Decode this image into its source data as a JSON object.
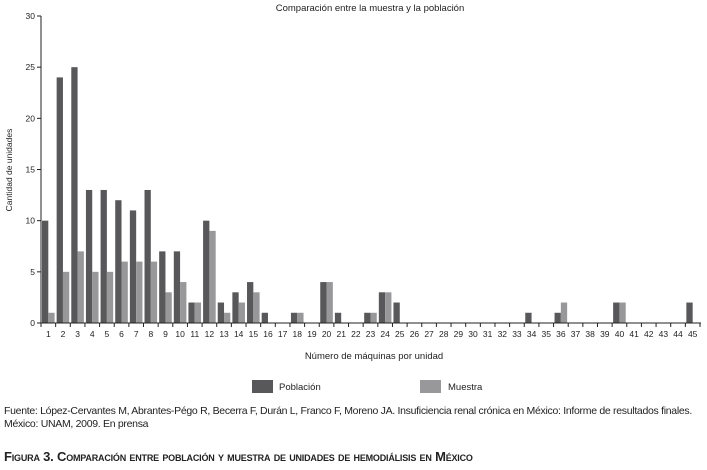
{
  "chart_data": {
    "type": "bar",
    "title": "Comparación entre la muestra y la población",
    "xlabel": "Número de máquinas por unidad",
    "ylabel": "Cantidad de unidades",
    "ylim": [
      0,
      30
    ],
    "yticks": [
      0,
      5,
      10,
      15,
      20,
      25,
      30
    ],
    "categories": [
      "1",
      "2",
      "3",
      "4",
      "5",
      "6",
      "7",
      "8",
      "9",
      "10",
      "11",
      "12",
      "13",
      "14",
      "15",
      "16",
      "17",
      "18",
      "19",
      "20",
      "21",
      "22",
      "23",
      "24",
      "25",
      "26",
      "27",
      "28",
      "29",
      "30",
      "31",
      "32",
      "33",
      "34",
      "35",
      "36",
      "37",
      "38",
      "39",
      "40",
      "41",
      "42",
      "43",
      "44",
      "45"
    ],
    "series": [
      {
        "name": "Población",
        "color": "#58585a",
        "values": [
          10,
          24,
          25,
          13,
          13,
          12,
          11,
          13,
          7,
          7,
          2,
          10,
          2,
          3,
          4,
          1,
          0,
          1,
          0,
          4,
          1,
          0,
          1,
          3,
          2,
          0,
          0,
          0,
          0,
          0,
          0,
          0,
          0,
          1,
          0,
          1,
          0,
          0,
          0,
          2,
          0,
          0,
          0,
          0,
          2
        ]
      },
      {
        "name": "Muestra",
        "color": "#98989b",
        "values": [
          1,
          5,
          7,
          5,
          5,
          6,
          6,
          6,
          3,
          4,
          2,
          9,
          1,
          2,
          3,
          0,
          0,
          1,
          0,
          4,
          0,
          0,
          1,
          3,
          0,
          0,
          0,
          0,
          0,
          0,
          0,
          0,
          0,
          0,
          0,
          2,
          0,
          0,
          0,
          2,
          0,
          0,
          0,
          0,
          0
        ]
      }
    ],
    "legend": "bottom",
    "grid": false
  },
  "source": "Fuente: López-Cervantes M, Abrantes-Pégo R, Becerra F, Durán L, Franco F, Moreno JA. Insuficiencia renal crónica en México: Informe de resultados finales. México: UNAM, 2009. En prensa",
  "caption": "Figura 3. Comparación entre población y muestra de unidades de hemodiálisis en México"
}
